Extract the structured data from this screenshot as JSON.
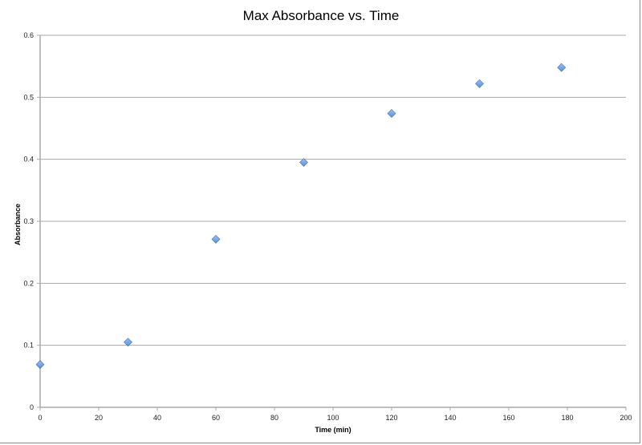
{
  "chart_data": {
    "type": "scatter",
    "title": "Max Absorbance vs. Time",
    "xlabel": "Time (min)",
    "ylabel": "Absorbance",
    "xlim": [
      0,
      200
    ],
    "ylim": [
      0,
      0.6
    ],
    "xticks": [
      0,
      20,
      40,
      60,
      80,
      100,
      120,
      140,
      160,
      180,
      200
    ],
    "yticks": [
      0,
      0.1,
      0.2,
      0.3,
      0.4,
      0.5,
      0.6
    ],
    "grid": "horizontal",
    "legend": "none",
    "marker": "diamond",
    "color": "#5b8fd9",
    "x": [
      0,
      30,
      60,
      90,
      120,
      150,
      178
    ],
    "y": [
      0.069,
      0.105,
      0.271,
      0.395,
      0.474,
      0.522,
      0.548
    ]
  }
}
